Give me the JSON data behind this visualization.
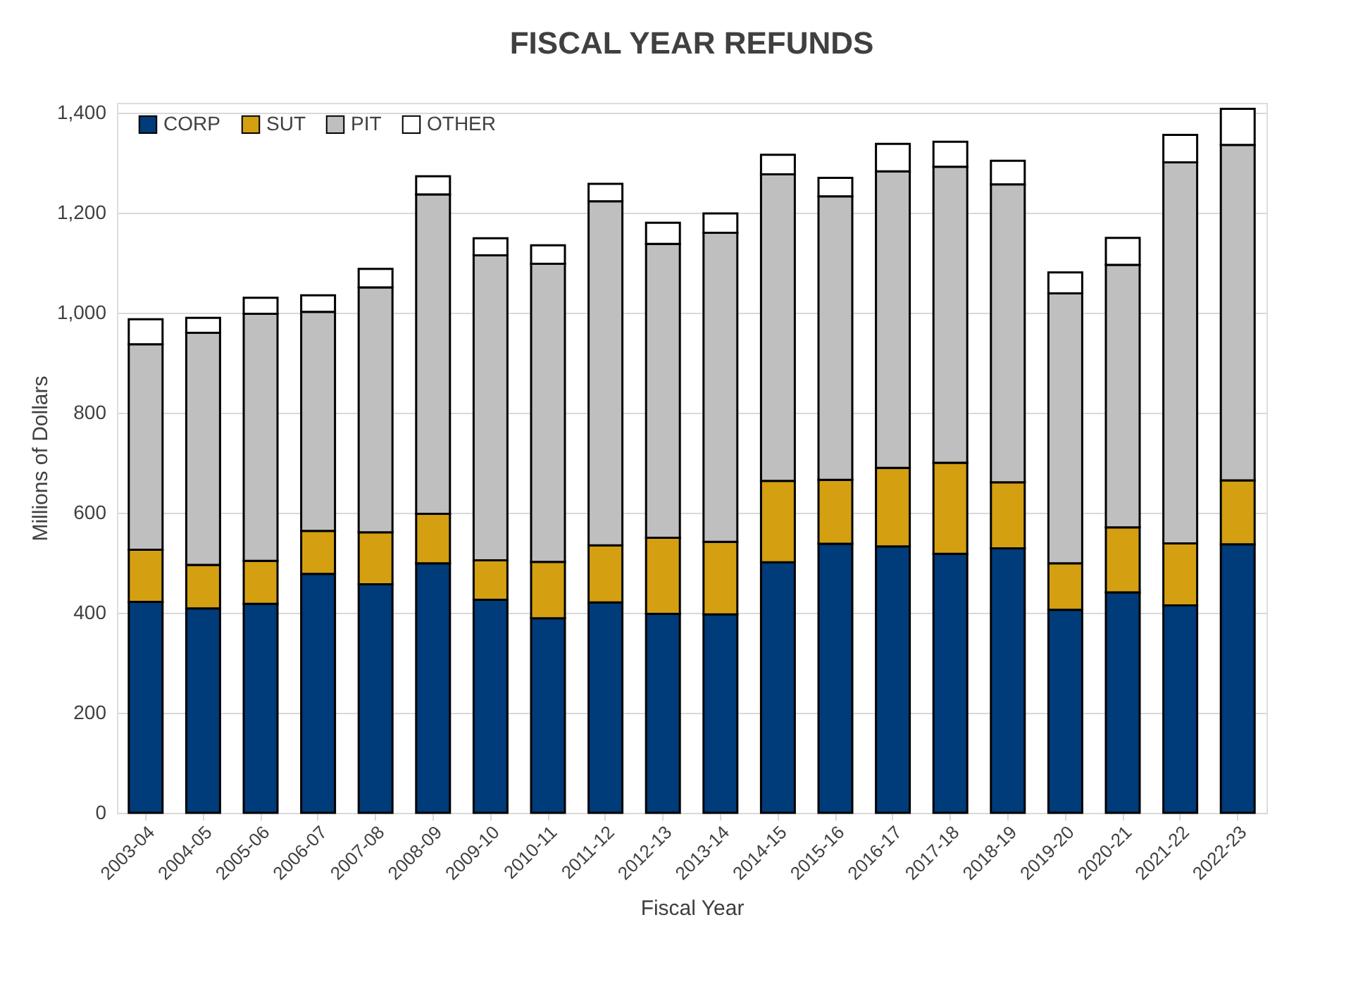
{
  "chart_data": {
    "type": "bar",
    "title": "FISCAL YEAR REFUNDS",
    "xlabel": "Fiscal Year",
    "ylabel": "Millions  of Dollars",
    "categories": [
      "2003-04",
      "2004-05",
      "2005-06",
      "2006-07",
      "2007-08",
      "2008-09",
      "2009-10",
      "2010-11",
      "2011-12",
      "2012-13",
      "2013-14",
      "2014-15",
      "2015-16",
      "2016-17",
      "2017-18",
      "2018-19",
      "2019-20",
      "2020-21",
      "2021-22",
      "2022-23"
    ],
    "stacked": true,
    "series": [
      {
        "name": "CORP",
        "color": "#003b7a",
        "values": [
          422,
          409,
          418,
          478,
          457,
          499,
          426,
          389,
          421,
          398,
          397,
          501,
          538,
          533,
          518,
          529,
          406,
          441,
          415,
          537
        ]
      },
      {
        "name": "SUT",
        "color": "#d4a012",
        "values": [
          104,
          87,
          86,
          86,
          104,
          99,
          79,
          113,
          114,
          152,
          145,
          163,
          128,
          157,
          182,
          132,
          93,
          130,
          124,
          128
        ]
      },
      {
        "name": "PIT",
        "color": "#bfbfbf",
        "values": [
          411,
          464,
          494,
          438,
          490,
          639,
          610,
          596,
          688,
          588,
          618,
          613,
          567,
          593,
          592,
          596,
          540,
          525,
          762,
          671
        ]
      },
      {
        "name": "OTHER",
        "color": "#ffffff",
        "values": [
          50,
          30,
          32,
          33,
          37,
          36,
          34,
          37,
          35,
          42,
          39,
          39,
          37,
          55,
          50,
          47,
          42,
          54,
          55,
          72
        ]
      }
    ],
    "ylim": [
      0,
      1420
    ],
    "yticks": [
      0,
      200,
      400,
      600,
      800,
      {
        "value": 1000,
        "label": "1,000"
      },
      {
        "value": 1200,
        "label": "1,200"
      },
      {
        "value": 1400,
        "label": "1,400"
      }
    ],
    "grid": "y",
    "legend": "top left"
  }
}
